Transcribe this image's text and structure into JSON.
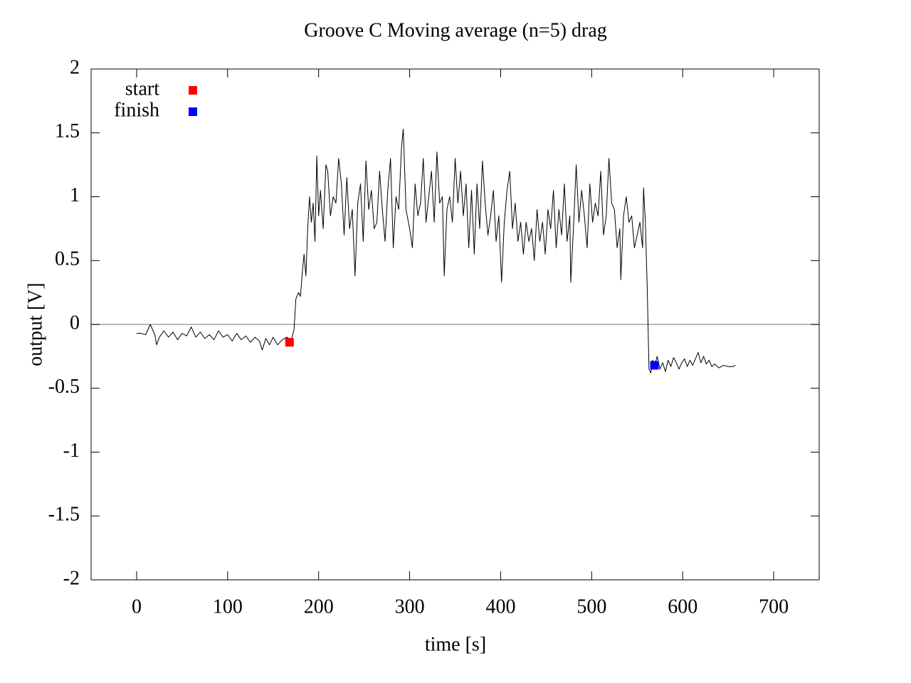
{
  "chart_data": {
    "type": "line",
    "title": "Groove C  Moving average (n=5) drag",
    "xlabel": "time [s]",
    "ylabel": "output [V]",
    "xlim": [
      -50,
      750
    ],
    "xticks": [
      0,
      100,
      200,
      300,
      400,
      500,
      600,
      700
    ],
    "ylim": [
      -2,
      2
    ],
    "yticks": [
      -2,
      -1.5,
      -1,
      -0.5,
      0,
      0.5,
      1,
      1.5,
      2
    ],
    "zeroaxis": true,
    "zeroaxis_color": "#a0a0a0",
    "legend": "top-left",
    "series": [
      {
        "style": "line",
        "color": "#000000",
        "x": [
          0,
          5,
          10,
          15,
          20,
          22,
          25,
          30,
          35,
          40,
          45,
          50,
          55,
          60,
          65,
          70,
          75,
          80,
          85,
          90,
          95,
          100,
          105,
          110,
          115,
          120,
          125,
          130,
          135,
          138,
          142,
          146,
          150,
          155,
          160,
          165,
          170,
          173,
          175,
          178,
          180,
          182,
          184,
          186,
          188,
          190,
          192,
          194,
          196,
          198,
          200,
          202,
          205,
          208,
          210,
          213,
          216,
          219,
          222,
          225,
          228,
          231,
          234,
          237,
          240,
          243,
          246,
          249,
          252,
          255,
          258,
          261,
          264,
          267,
          270,
          273,
          276,
          279,
          282,
          285,
          288,
          291,
          293,
          296,
          300,
          303,
          306,
          309,
          312,
          315,
          318,
          321,
          324,
          327,
          330,
          333,
          336,
          338,
          341,
          344,
          347,
          350,
          353,
          356,
          359,
          362,
          365,
          368,
          371,
          374,
          377,
          380,
          383,
          386,
          389,
          392,
          395,
          398,
          401,
          404,
          407,
          410,
          413,
          416,
          419,
          422,
          425,
          428,
          431,
          434,
          437,
          440,
          443,
          446,
          449,
          452,
          455,
          458,
          461,
          464,
          467,
          470,
          473,
          476,
          477,
          480,
          483,
          486,
          489,
          492,
          495,
          498,
          501,
          504,
          507,
          510,
          513,
          516,
          519,
          522,
          525,
          528,
          531,
          532,
          535,
          538,
          541,
          544,
          547,
          550,
          553,
          556,
          557,
          559,
          561,
          563,
          565,
          567,
          569,
          572,
          575,
          578,
          581,
          584,
          587,
          590,
          593,
          596,
          599,
          602,
          605,
          608,
          611,
          614,
          617,
          620,
          623,
          626,
          629,
          632,
          635,
          640,
          645,
          650,
          655,
          658
        ],
        "values": [
          -0.07,
          -0.07,
          -0.08,
          0.0,
          -0.08,
          -0.16,
          -0.1,
          -0.05,
          -0.1,
          -0.06,
          -0.12,
          -0.07,
          -0.09,
          -0.02,
          -0.1,
          -0.06,
          -0.11,
          -0.08,
          -0.12,
          -0.05,
          -0.1,
          -0.08,
          -0.13,
          -0.07,
          -0.12,
          -0.09,
          -0.14,
          -0.1,
          -0.13,
          -0.2,
          -0.11,
          -0.16,
          -0.1,
          -0.16,
          -0.12,
          -0.1,
          -0.12,
          -0.04,
          0.2,
          0.25,
          0.22,
          0.4,
          0.55,
          0.38,
          0.75,
          1.0,
          0.8,
          0.95,
          0.65,
          1.32,
          0.85,
          1.05,
          0.75,
          1.25,
          1.2,
          0.85,
          1.0,
          0.95,
          1.3,
          1.1,
          0.7,
          1.15,
          0.75,
          0.9,
          0.38,
          0.95,
          1.1,
          0.65,
          1.28,
          0.9,
          1.05,
          0.75,
          0.8,
          1.2,
          0.9,
          0.65,
          1.05,
          1.3,
          0.6,
          1.0,
          0.9,
          1.38,
          1.53,
          0.9,
          0.75,
          0.6,
          1.1,
          0.85,
          0.95,
          1.3,
          0.8,
          1.0,
          1.2,
          0.8,
          1.35,
          0.95,
          1.0,
          0.38,
          0.9,
          1.0,
          0.8,
          1.3,
          0.95,
          1.2,
          0.85,
          1.1,
          0.6,
          1.05,
          0.55,
          1.1,
          0.75,
          1.28,
          0.95,
          0.7,
          0.85,
          1.05,
          0.65,
          0.85,
          0.33,
          0.8,
          1.05,
          1.2,
          0.75,
          0.95,
          0.65,
          0.8,
          0.55,
          0.8,
          0.65,
          0.75,
          0.5,
          0.9,
          0.65,
          0.8,
          0.55,
          0.9,
          0.75,
          1.05,
          0.6,
          0.9,
          0.7,
          1.1,
          0.65,
          0.85,
          0.33,
          0.75,
          1.25,
          0.8,
          1.05,
          0.85,
          0.6,
          1.1,
          0.8,
          0.95,
          0.85,
          1.2,
          0.7,
          0.85,
          1.3,
          0.95,
          0.9,
          0.6,
          0.75,
          0.35,
          0.85,
          1.0,
          0.8,
          0.85,
          0.6,
          0.7,
          0.8,
          0.6,
          1.07,
          0.8,
          0.3,
          -0.35,
          -0.38,
          -0.28,
          -0.33,
          -0.25,
          -0.35,
          -0.3,
          -0.37,
          -0.28,
          -0.33,
          -0.26,
          -0.3,
          -0.35,
          -0.3,
          -0.27,
          -0.33,
          -0.28,
          -0.32,
          -0.27,
          -0.22,
          -0.3,
          -0.25,
          -0.31,
          -0.28,
          -0.33,
          -0.31,
          -0.34,
          -0.32,
          -0.33,
          -0.33,
          -0.32
        ]
      },
      {
        "style": "points",
        "name": "start",
        "color": "#ff0000",
        "x": [
          168
        ],
        "values": [
          -0.14
        ]
      },
      {
        "style": "points",
        "name": "finish",
        "color": "#0000ff",
        "x": [
          569
        ],
        "values": [
          -0.32
        ]
      }
    ]
  }
}
